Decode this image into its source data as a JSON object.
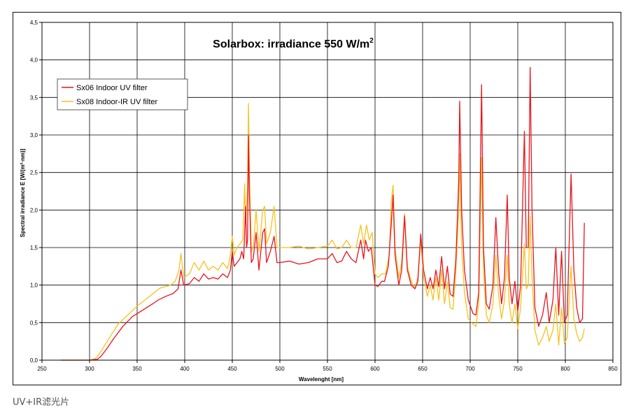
{
  "caption": "UV+IR滤光片",
  "chart_data": {
    "type": "line",
    "title": "Solarbox: irradiance 550 W/m",
    "title_superscript": "2",
    "xlabel": "Wavelenght [nm]",
    "ylabel": "Spectral irradiance E [W/(m²·nm)]",
    "xlim": [
      250,
      850
    ],
    "ylim": [
      0,
      4.5
    ],
    "xticks": [
      250,
      300,
      350,
      400,
      450,
      500,
      550,
      600,
      650,
      700,
      750,
      800,
      850
    ],
    "yticks": [
      "0,0",
      "0,5",
      "1,0",
      "1,5",
      "2,0",
      "2,5",
      "3,0",
      "3,5",
      "4,0",
      "4,5"
    ],
    "grid": true,
    "legend_position": "top-left",
    "series": [
      {
        "name": "Sx06 Indoor UV filter",
        "color": "#e8141c",
        "points": [
          [
            270,
            0
          ],
          [
            300,
            0
          ],
          [
            308,
            0.01
          ],
          [
            312,
            0.05
          ],
          [
            318,
            0.15
          ],
          [
            325,
            0.28
          ],
          [
            335,
            0.45
          ],
          [
            345,
            0.58
          ],
          [
            355,
            0.66
          ],
          [
            365,
            0.74
          ],
          [
            372,
            0.8
          ],
          [
            380,
            0.85
          ],
          [
            388,
            0.89
          ],
          [
            393,
            0.95
          ],
          [
            396,
            1.2
          ],
          [
            399,
            1.0
          ],
          [
            405,
            1.02
          ],
          [
            410,
            1.1
          ],
          [
            415,
            1.05
          ],
          [
            420,
            1.15
          ],
          [
            425,
            1.08
          ],
          [
            430,
            1.1
          ],
          [
            435,
            1.08
          ],
          [
            440,
            1.15
          ],
          [
            445,
            1.1
          ],
          [
            448,
            1.2
          ],
          [
            450,
            1.45
          ],
          [
            452,
            1.25
          ],
          [
            455,
            1.3
          ],
          [
            458,
            1.35
          ],
          [
            460,
            1.45
          ],
          [
            462,
            1.35
          ],
          [
            464,
            2.05
          ],
          [
            465,
            1.5
          ],
          [
            466,
            1.6
          ],
          [
            467,
            3.0
          ],
          [
            468,
            2.2
          ],
          [
            470,
            1.3
          ],
          [
            472,
            1.35
          ],
          [
            475,
            1.7
          ],
          [
            478,
            1.2
          ],
          [
            482,
            1.7
          ],
          [
            484,
            1.75
          ],
          [
            486,
            1.3
          ],
          [
            490,
            1.45
          ],
          [
            494,
            1.65
          ],
          [
            497,
            1.3
          ],
          [
            500,
            1.3
          ],
          [
            510,
            1.32
          ],
          [
            520,
            1.28
          ],
          [
            530,
            1.3
          ],
          [
            540,
            1.35
          ],
          [
            550,
            1.35
          ],
          [
            555,
            1.42
          ],
          [
            560,
            1.3
          ],
          [
            565,
            1.32
          ],
          [
            570,
            1.45
          ],
          [
            575,
            1.35
          ],
          [
            580,
            1.3
          ],
          [
            585,
            1.6
          ],
          [
            588,
            1.35
          ],
          [
            590,
            1.6
          ],
          [
            593,
            1.45
          ],
          [
            596,
            1.5
          ],
          [
            600,
            1.0
          ],
          [
            603,
            0.98
          ],
          [
            607,
            1.05
          ],
          [
            610,
            1.05
          ],
          [
            614,
            1.25
          ],
          [
            617,
            1.8
          ],
          [
            619,
            2.2
          ],
          [
            621,
            1.4
          ],
          [
            625,
            1.0
          ],
          [
            628,
            1.2
          ],
          [
            631,
            1.92
          ],
          [
            634,
            1.2
          ],
          [
            638,
            1.0
          ],
          [
            642,
            0.95
          ],
          [
            645,
            1.05
          ],
          [
            648,
            1.68
          ],
          [
            651,
            1.2
          ],
          [
            655,
            0.95
          ],
          [
            658,
            1.1
          ],
          [
            661,
            0.95
          ],
          [
            664,
            1.2
          ],
          [
            667,
            0.98
          ],
          [
            670,
            1.38
          ],
          [
            673,
            0.95
          ],
          [
            676,
            1.25
          ],
          [
            679,
            0.88
          ],
          [
            682,
            0.85
          ],
          [
            685,
            1.35
          ],
          [
            688,
            2.4
          ],
          [
            689,
            3.45
          ],
          [
            691,
            2.0
          ],
          [
            694,
            1.2
          ],
          [
            698,
            0.8
          ],
          [
            703,
            0.62
          ],
          [
            706,
            0.6
          ],
          [
            709,
            0.9
          ],
          [
            712,
            3.67
          ],
          [
            714,
            1.5
          ],
          [
            717,
            0.75
          ],
          [
            720,
            0.68
          ],
          [
            724,
            1.0
          ],
          [
            727,
            1.9
          ],
          [
            730,
            1.15
          ],
          [
            733,
            0.75
          ],
          [
            736,
            1.1
          ],
          [
            739,
            2.2
          ],
          [
            741,
            1.1
          ],
          [
            744,
            0.75
          ],
          [
            747,
            1.05
          ],
          [
            750,
            0.65
          ],
          [
            753,
            1.0
          ],
          [
            757,
            3.05
          ],
          [
            759,
            1.5
          ],
          [
            761,
            1.5
          ],
          [
            763,
            3.9
          ],
          [
            765,
            2.0
          ],
          [
            768,
            0.7
          ],
          [
            772,
            0.45
          ],
          [
            776,
            0.6
          ],
          [
            780,
            0.9
          ],
          [
            783,
            0.5
          ],
          [
            787,
            0.8
          ],
          [
            790,
            1.5
          ],
          [
            793,
            0.6
          ],
          [
            796,
            1.45
          ],
          [
            799,
            0.5
          ],
          [
            802,
            0.6
          ],
          [
            806,
            2.48
          ],
          [
            809,
            1.2
          ],
          [
            812,
            0.7
          ],
          [
            815,
            0.5
          ],
          [
            818,
            0.55
          ],
          [
            820,
            1.83
          ]
        ]
      },
      {
        "name": "Sx08 Indoor-IR UV filter",
        "color": "#f7c11e",
        "points": [
          [
            270,
            0
          ],
          [
            300,
            0
          ],
          [
            306,
            0.02
          ],
          [
            310,
            0.08
          ],
          [
            315,
            0.18
          ],
          [
            322,
            0.32
          ],
          [
            330,
            0.48
          ],
          [
            340,
            0.6
          ],
          [
            350,
            0.72
          ],
          [
            360,
            0.82
          ],
          [
            368,
            0.9
          ],
          [
            374,
            0.96
          ],
          [
            380,
            0.98
          ],
          [
            385,
            1.0
          ],
          [
            390,
            1.05
          ],
          [
            394,
            1.2
          ],
          [
            396,
            1.42
          ],
          [
            399,
            1.1
          ],
          [
            405,
            1.15
          ],
          [
            410,
            1.3
          ],
          [
            415,
            1.2
          ],
          [
            420,
            1.32
          ],
          [
            425,
            1.2
          ],
          [
            430,
            1.25
          ],
          [
            435,
            1.2
          ],
          [
            440,
            1.3
          ],
          [
            445,
            1.22
          ],
          [
            448,
            1.4
          ],
          [
            450,
            1.65
          ],
          [
            452,
            1.4
          ],
          [
            455,
            1.5
          ],
          [
            458,
            1.55
          ],
          [
            461,
            1.6
          ],
          [
            463,
            2.35
          ],
          [
            464,
            1.8
          ],
          [
            466,
            2.3
          ],
          [
            467,
            3.42
          ],
          [
            468,
            2.5
          ],
          [
            470,
            1.45
          ],
          [
            472,
            1.5
          ],
          [
            475,
            2.0
          ],
          [
            478,
            1.45
          ],
          [
            482,
            2.0
          ],
          [
            484,
            2.05
          ],
          [
            486,
            1.55
          ],
          [
            490,
            1.7
          ],
          [
            494,
            2.05
          ],
          [
            497,
            1.5
          ],
          [
            500,
            1.5
          ],
          [
            510,
            1.5
          ],
          [
            520,
            1.52
          ],
          [
            530,
            1.48
          ],
          [
            540,
            1.5
          ],
          [
            550,
            1.52
          ],
          [
            555,
            1.6
          ],
          [
            560,
            1.48
          ],
          [
            565,
            1.5
          ],
          [
            570,
            1.6
          ],
          [
            575,
            1.5
          ],
          [
            580,
            1.5
          ],
          [
            585,
            1.8
          ],
          [
            588,
            1.55
          ],
          [
            591,
            1.8
          ],
          [
            594,
            1.6
          ],
          [
            597,
            1.7
          ],
          [
            600,
            1.15
          ],
          [
            603,
            1.1
          ],
          [
            607,
            1.15
          ],
          [
            611,
            1.15
          ],
          [
            615,
            1.4
          ],
          [
            617,
            2.1
          ],
          [
            619,
            2.33
          ],
          [
            621,
            1.5
          ],
          [
            625,
            1.1
          ],
          [
            628,
            1.3
          ],
          [
            631,
            1.95
          ],
          [
            634,
            1.25
          ],
          [
            638,
            1.05
          ],
          [
            642,
            0.95
          ],
          [
            645,
            1.1
          ],
          [
            648,
            1.6
          ],
          [
            651,
            1.1
          ],
          [
            655,
            0.85
          ],
          [
            658,
            1.0
          ],
          [
            661,
            0.8
          ],
          [
            664,
            1.1
          ],
          [
            667,
            0.8
          ],
          [
            670,
            1.2
          ],
          [
            673,
            0.75
          ],
          [
            676,
            1.05
          ],
          [
            679,
            0.7
          ],
          [
            682,
            0.68
          ],
          [
            685,
            1.2
          ],
          [
            688,
            2.0
          ],
          [
            689,
            2.75
          ],
          [
            691,
            1.5
          ],
          [
            694,
            0.9
          ],
          [
            698,
            0.55
          ],
          [
            703,
            0.48
          ],
          [
            706,
            0.45
          ],
          [
            709,
            0.75
          ],
          [
            712,
            2.7
          ],
          [
            714,
            1.2
          ],
          [
            717,
            0.6
          ],
          [
            720,
            0.5
          ],
          [
            724,
            0.75
          ],
          [
            727,
            1.4
          ],
          [
            730,
            0.85
          ],
          [
            733,
            0.55
          ],
          [
            736,
            0.8
          ],
          [
            739,
            1.4
          ],
          [
            741,
            0.75
          ],
          [
            744,
            0.5
          ],
          [
            747,
            0.75
          ],
          [
            750,
            0.42
          ],
          [
            753,
            0.7
          ],
          [
            757,
            1.55
          ],
          [
            759,
            0.95
          ],
          [
            761,
            1.0
          ],
          [
            763,
            1.92
          ],
          [
            765,
            1.1
          ],
          [
            768,
            0.4
          ],
          [
            772,
            0.2
          ],
          [
            776,
            0.3
          ],
          [
            780,
            0.45
          ],
          [
            783,
            0.25
          ],
          [
            787,
            0.4
          ],
          [
            790,
            0.75
          ],
          [
            793,
            0.2
          ],
          [
            796,
            0.7
          ],
          [
            799,
            0.22
          ],
          [
            802,
            0.3
          ],
          [
            806,
            1.25
          ],
          [
            809,
            0.55
          ],
          [
            812,
            0.35
          ],
          [
            815,
            0.25
          ],
          [
            818,
            0.3
          ],
          [
            820,
            0.42
          ]
        ]
      }
    ]
  }
}
